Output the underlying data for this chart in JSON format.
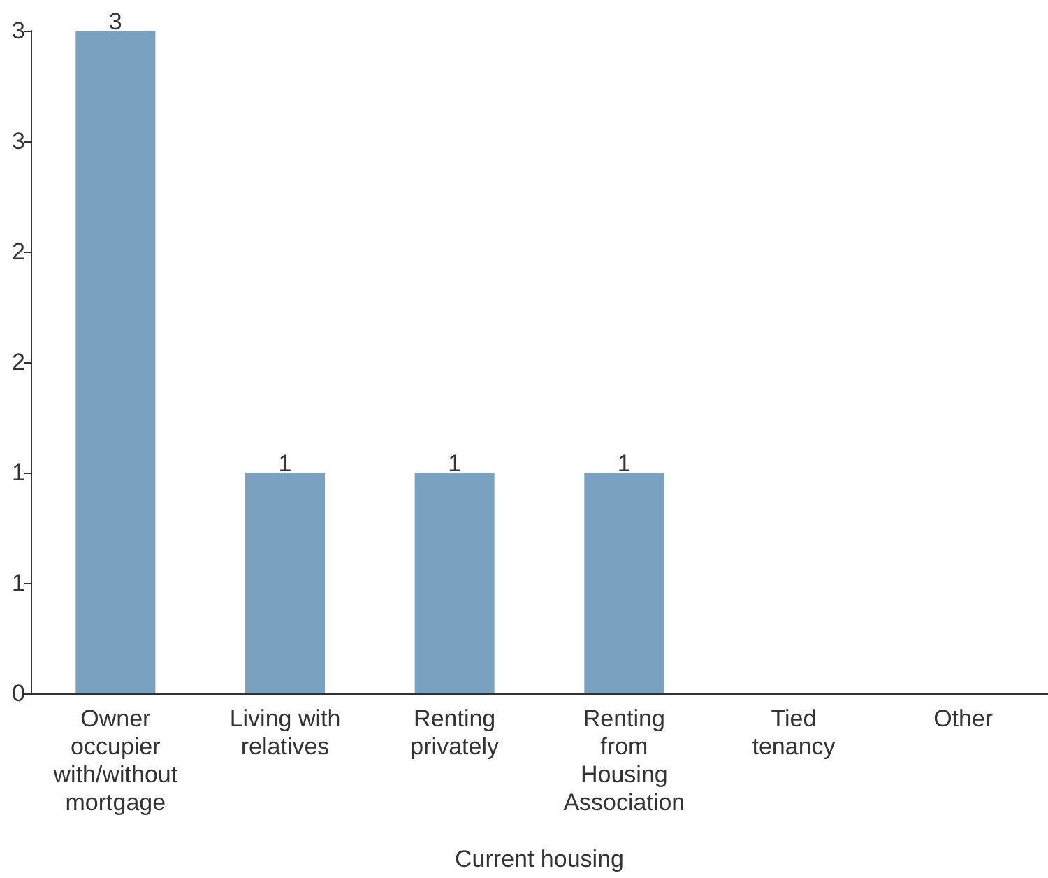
{
  "chart_data": {
    "type": "bar",
    "xlabel": "Current housing",
    "categories": [
      "Owner\noccupier\nwith/without\nmortgage",
      "Living with\nrelatives",
      "Renting\nprivately",
      "Renting\nfrom\nHousing\nAssociation",
      "Tied\ntenancy",
      "Other"
    ],
    "values": [
      3,
      1,
      1,
      1,
      0,
      0
    ],
    "value_labels": [
      "3",
      "1",
      "1",
      "1",
      null,
      null
    ],
    "color": "#7aa1bf",
    "ylim": [
      0,
      3
    ],
    "yticks": [
      0,
      {
        "value": 0.5,
        "label": "1"
      },
      1,
      {
        "value": 1.5,
        "label": "2"
      },
      2,
      {
        "value": 2.5,
        "label": "3"
      },
      3
    ],
    "grid": false
  }
}
